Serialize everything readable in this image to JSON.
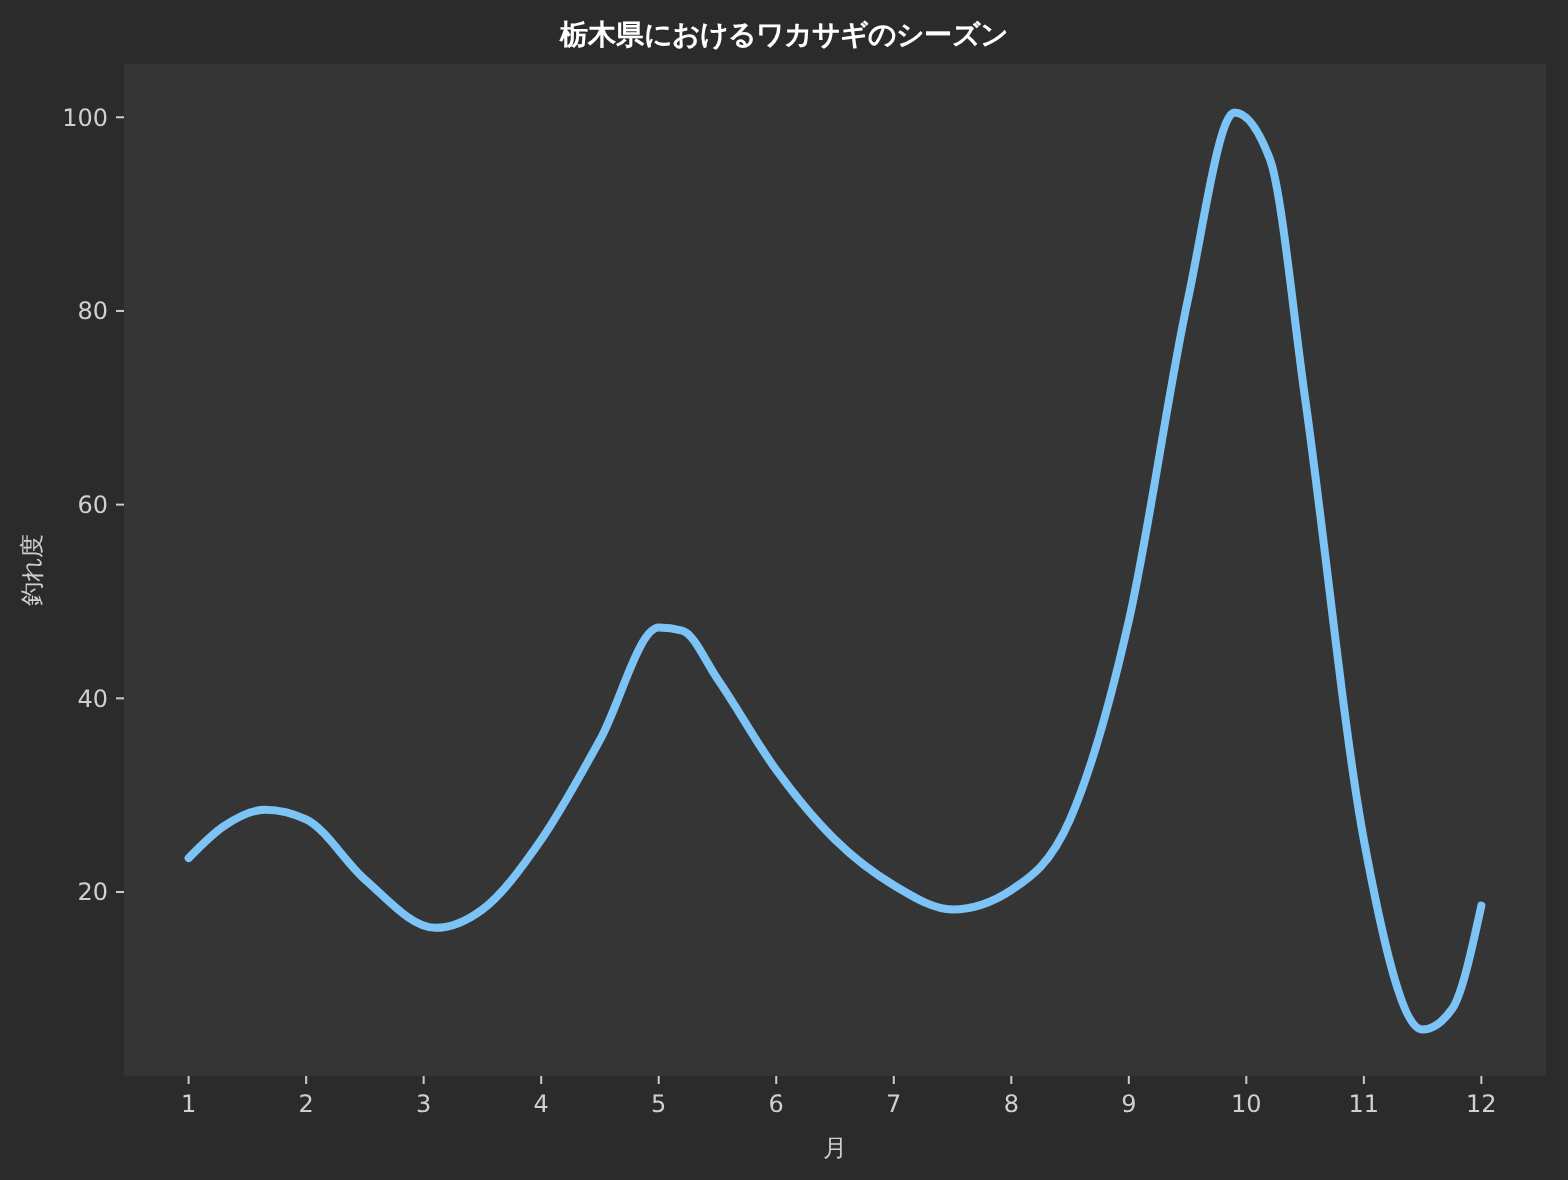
{
  "chart_data": {
    "type": "line",
    "title": "栃木県におけるワカサギのシーズン",
    "xlabel": "月",
    "ylabel": "釣れ度",
    "x": [
      1,
      1.3,
      1.65,
      2,
      2.5,
      3.1,
      3.5,
      4,
      4.5,
      5,
      5.2,
      5.5,
      6,
      6.5,
      7,
      7.5,
      8,
      8.5,
      9,
      9.5,
      9.9,
      10.2,
      10.5,
      11,
      11.5,
      11.75,
      12
    ],
    "series": [
      {
        "color": "#7cc4f5",
        "values": [
          23.5,
          26.8,
          28.5,
          27.5,
          21.3,
          16.3,
          18.2,
          25.4,
          35.7,
          47.3,
          47,
          42,
          32.6,
          25.4,
          20.7,
          18.2,
          20.2,
          27.5,
          48,
          81,
          100.5,
          95.7,
          71,
          25.4,
          5.8,
          7.9,
          18.6
        ]
      }
    ],
    "xlim": [
      0.45,
      12.55
    ],
    "ylim": [
      1,
      105.5
    ],
    "xticks": [
      1,
      2,
      3,
      4,
      5,
      6,
      7,
      8,
      9,
      10,
      11,
      12
    ],
    "yticks": [
      20,
      40,
      60,
      80,
      100
    ],
    "grid": false,
    "marker": "none",
    "line_style": "solid"
  }
}
